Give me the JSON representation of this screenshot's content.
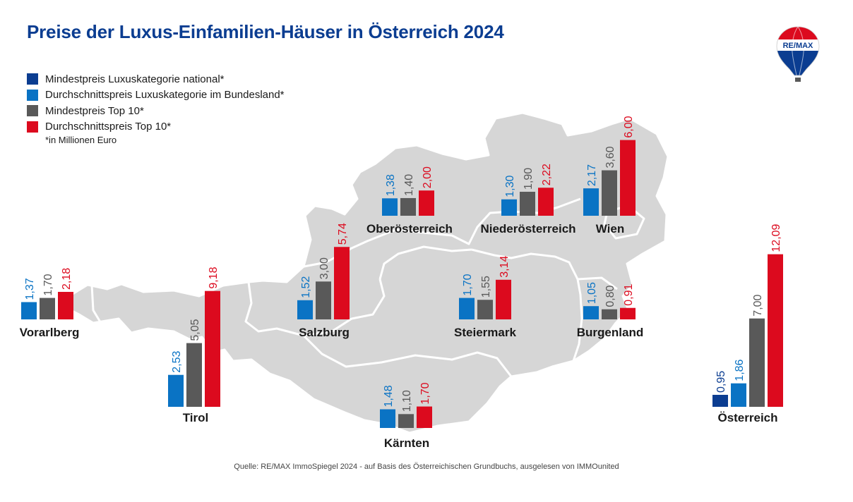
{
  "title": "Preise der Luxus-Einfamilien-Häuser in Österreich 2024",
  "legend": {
    "items": [
      {
        "label": "Mindestpreis Luxuskategorie national*",
        "color": "#0b3d91"
      },
      {
        "label": "Durchschnittspreis Luxuskategorie im Bundesland*",
        "color": "#0a73c4"
      },
      {
        "label": "Mindestpreis Top 10*",
        "color": "#595959"
      },
      {
        "label": "Durchschnittspreis Top 10*",
        "color": "#dc0a1e"
      }
    ],
    "note": "*in Millionen Euro"
  },
  "source": "Quelle: RE/MAX ImmoSpiegel 2024 - auf Basis des Österreichischen Grundbuchs, ausgelesen von IMMOunited",
  "logo": {
    "text": "RE/MAX",
    "icon": "balloon-icon"
  },
  "chart_data": {
    "type": "bar",
    "unit": "Millionen Euro",
    "series_names": [
      "Mindestpreis Luxuskategorie national*",
      "Durchschnittspreis Luxuskategorie im Bundesland*",
      "Mindestpreis Top 10*",
      "Durchschnittspreis Top 10*"
    ],
    "colors": [
      "#0b3d91",
      "#0a73c4",
      "#595959",
      "#dc0a1e"
    ],
    "regions": [
      {
        "name": "Vorarlberg",
        "values": [
          null,
          1.37,
          1.7,
          2.18
        ],
        "labels": [
          "",
          "1,37",
          "1,70",
          "2,18"
        ]
      },
      {
        "name": "Tirol",
        "values": [
          null,
          2.53,
          5.05,
          9.18
        ],
        "labels": [
          "",
          "2,53",
          "5,05",
          "9,18"
        ]
      },
      {
        "name": "Salzburg",
        "values": [
          null,
          1.52,
          3.0,
          5.74
        ],
        "labels": [
          "",
          "1,52",
          "3,00",
          "5,74"
        ]
      },
      {
        "name": "Oberösterreich",
        "values": [
          null,
          1.38,
          1.4,
          2.0
        ],
        "labels": [
          "",
          "1,38",
          "1,40",
          "2,00"
        ]
      },
      {
        "name": "Niederösterreich",
        "values": [
          null,
          1.3,
          1.9,
          2.22
        ],
        "labels": [
          "",
          "1,30",
          "1,90",
          "2,22"
        ]
      },
      {
        "name": "Wien",
        "values": [
          null,
          2.17,
          3.6,
          6.0
        ],
        "labels": [
          "",
          "2,17",
          "3,60",
          "6,00"
        ]
      },
      {
        "name": "Steiermark",
        "values": [
          null,
          1.7,
          1.55,
          3.14
        ],
        "labels": [
          "",
          "1,70",
          "1,55",
          "3,14"
        ]
      },
      {
        "name": "Burgenland",
        "values": [
          null,
          1.05,
          0.8,
          0.91
        ],
        "labels": [
          "",
          "1,05",
          "0,80",
          "0,91"
        ]
      },
      {
        "name": "Kärnten",
        "values": [
          null,
          1.48,
          1.1,
          1.7
        ],
        "labels": [
          "",
          "1,48",
          "1,10",
          "1,70"
        ]
      },
      {
        "name": "Österreich",
        "values": [
          0.95,
          1.86,
          7.0,
          12.09
        ],
        "labels": [
          "0,95",
          "1,86",
          "7,00",
          "12,09"
        ]
      }
    ]
  }
}
